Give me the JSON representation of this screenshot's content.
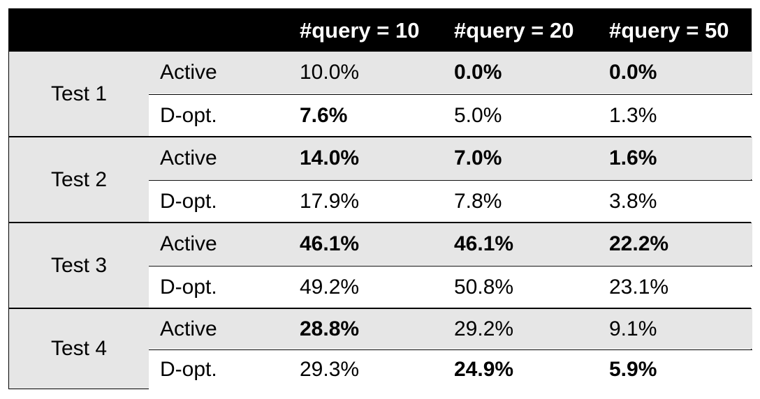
{
  "header": {
    "blank1": "",
    "blank2": "",
    "q10": "#query = 10",
    "q20": "#query = 20",
    "q50": "#query = 50"
  },
  "groups": [
    {
      "test": "Test 1",
      "active": {
        "method": "Active",
        "q10": "10.0%",
        "q20": "0.0%",
        "q50": "0.0%",
        "bold": [
          false,
          true,
          true
        ]
      },
      "dopt": {
        "method": "D-opt.",
        "q10": "7.6%",
        "q20": "5.0%",
        "q50": "1.3%",
        "bold": [
          true,
          false,
          false
        ]
      }
    },
    {
      "test": "Test 2",
      "active": {
        "method": "Active",
        "q10": "14.0%",
        "q20": "7.0%",
        "q50": "1.6%",
        "bold": [
          true,
          true,
          true
        ]
      },
      "dopt": {
        "method": "D-opt.",
        "q10": "17.9%",
        "q20": "7.8%",
        "q50": "3.8%",
        "bold": [
          false,
          false,
          false
        ]
      }
    },
    {
      "test": "Test 3",
      "active": {
        "method": "Active",
        "q10": "46.1%",
        "q20": "46.1%",
        "q50": "22.2%",
        "bold": [
          true,
          true,
          true
        ]
      },
      "dopt": {
        "method": "D-opt.",
        "q10": "49.2%",
        "q20": "50.8%",
        "q50": "23.1%",
        "bold": [
          false,
          false,
          false
        ]
      }
    },
    {
      "test": "Test 4",
      "active": {
        "method": "Active",
        "q10": "28.8%",
        "q20": "29.2%",
        "q50": "9.1%",
        "bold": [
          true,
          false,
          false
        ]
      },
      "dopt": {
        "method": "D-opt.",
        "q10": "29.3%",
        "q20": "24.9%",
        "q50": "5.9%",
        "bold": [
          false,
          true,
          true
        ]
      }
    }
  ]
}
